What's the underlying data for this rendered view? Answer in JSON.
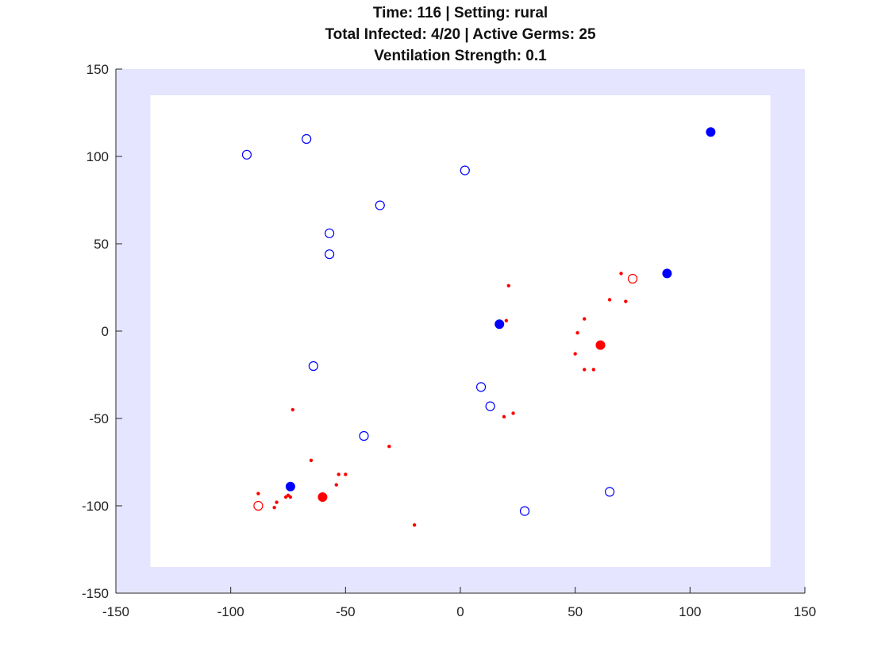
{
  "chart_data": {
    "type": "scatter",
    "title_lines": [
      "Time: 116 | Setting: rural",
      "Total Infected: 4/20 | Active Germs: 25",
      "Ventilation Strength: 0.1"
    ],
    "xlabel": "",
    "ylabel": "",
    "xlim": [
      -150,
      150
    ],
    "ylim": [
      -150,
      150
    ],
    "x_ticks": [
      -150,
      -100,
      -50,
      0,
      50,
      100,
      150
    ],
    "y_ticks": [
      150,
      100,
      50,
      0,
      -50,
      -100,
      -150
    ],
    "x_tick_labels": [
      "-150",
      "-100",
      "-50",
      "0",
      "50",
      "100",
      "150"
    ],
    "y_tick_labels": [
      "150",
      "100",
      "50",
      "0",
      "-50",
      "-100",
      "-150"
    ],
    "grid": false,
    "boundary_band": {
      "outer": [
        -150,
        150
      ],
      "inner": [
        -135,
        135
      ],
      "color": "#e5e5ff"
    },
    "colors": {
      "blue": "#0000ff",
      "red": "#ff0000"
    },
    "series": [
      {
        "kind": "healthy",
        "marker": "open-circle",
        "color": "#0000ff",
        "points": [
          [
            -93,
            101
          ],
          [
            -67,
            110
          ],
          [
            2,
            92
          ],
          [
            -35,
            72
          ],
          [
            -57,
            56
          ],
          [
            -57,
            44
          ],
          [
            -64,
            -20
          ],
          [
            9,
            -32
          ],
          [
            13,
            -43
          ],
          [
            -42,
            -60
          ],
          [
            65,
            -92
          ],
          [
            28,
            -103
          ]
        ]
      },
      {
        "kind": "immune",
        "marker": "filled-circle",
        "color": "#0000ff",
        "points": [
          [
            109,
            114
          ],
          [
            90,
            33
          ],
          [
            17,
            4
          ],
          [
            -74,
            -89
          ]
        ]
      },
      {
        "kind": "infected-inactive",
        "marker": "open-circle",
        "color": "#ff0000",
        "points": [
          [
            75,
            30
          ],
          [
            -88,
            -100
          ]
        ]
      },
      {
        "kind": "infected",
        "marker": "filled-circle",
        "color": "#ff0000",
        "points": [
          [
            61,
            -8
          ],
          [
            -60,
            -95
          ]
        ]
      },
      {
        "kind": "germ",
        "marker": "dot",
        "color": "#ff0000",
        "points": [
          [
            21,
            26
          ],
          [
            70,
            33
          ],
          [
            65,
            18
          ],
          [
            72,
            17
          ],
          [
            54,
            7
          ],
          [
            20,
            6
          ],
          [
            51,
            -1
          ],
          [
            50,
            -13
          ],
          [
            54,
            -22
          ],
          [
            58,
            -22
          ],
          [
            23,
            -47
          ],
          [
            19,
            -49
          ],
          [
            -73,
            -45
          ],
          [
            -31,
            -66
          ],
          [
            -65,
            -74
          ],
          [
            -53,
            -82
          ],
          [
            -50,
            -82
          ],
          [
            -54,
            -88
          ],
          [
            -88,
            -93
          ],
          [
            -75,
            -94
          ],
          [
            -74,
            -95
          ],
          [
            -80,
            -98
          ],
          [
            -81,
            -101
          ],
          [
            -20,
            -111
          ],
          [
            -76,
            -95
          ]
        ]
      }
    ]
  }
}
